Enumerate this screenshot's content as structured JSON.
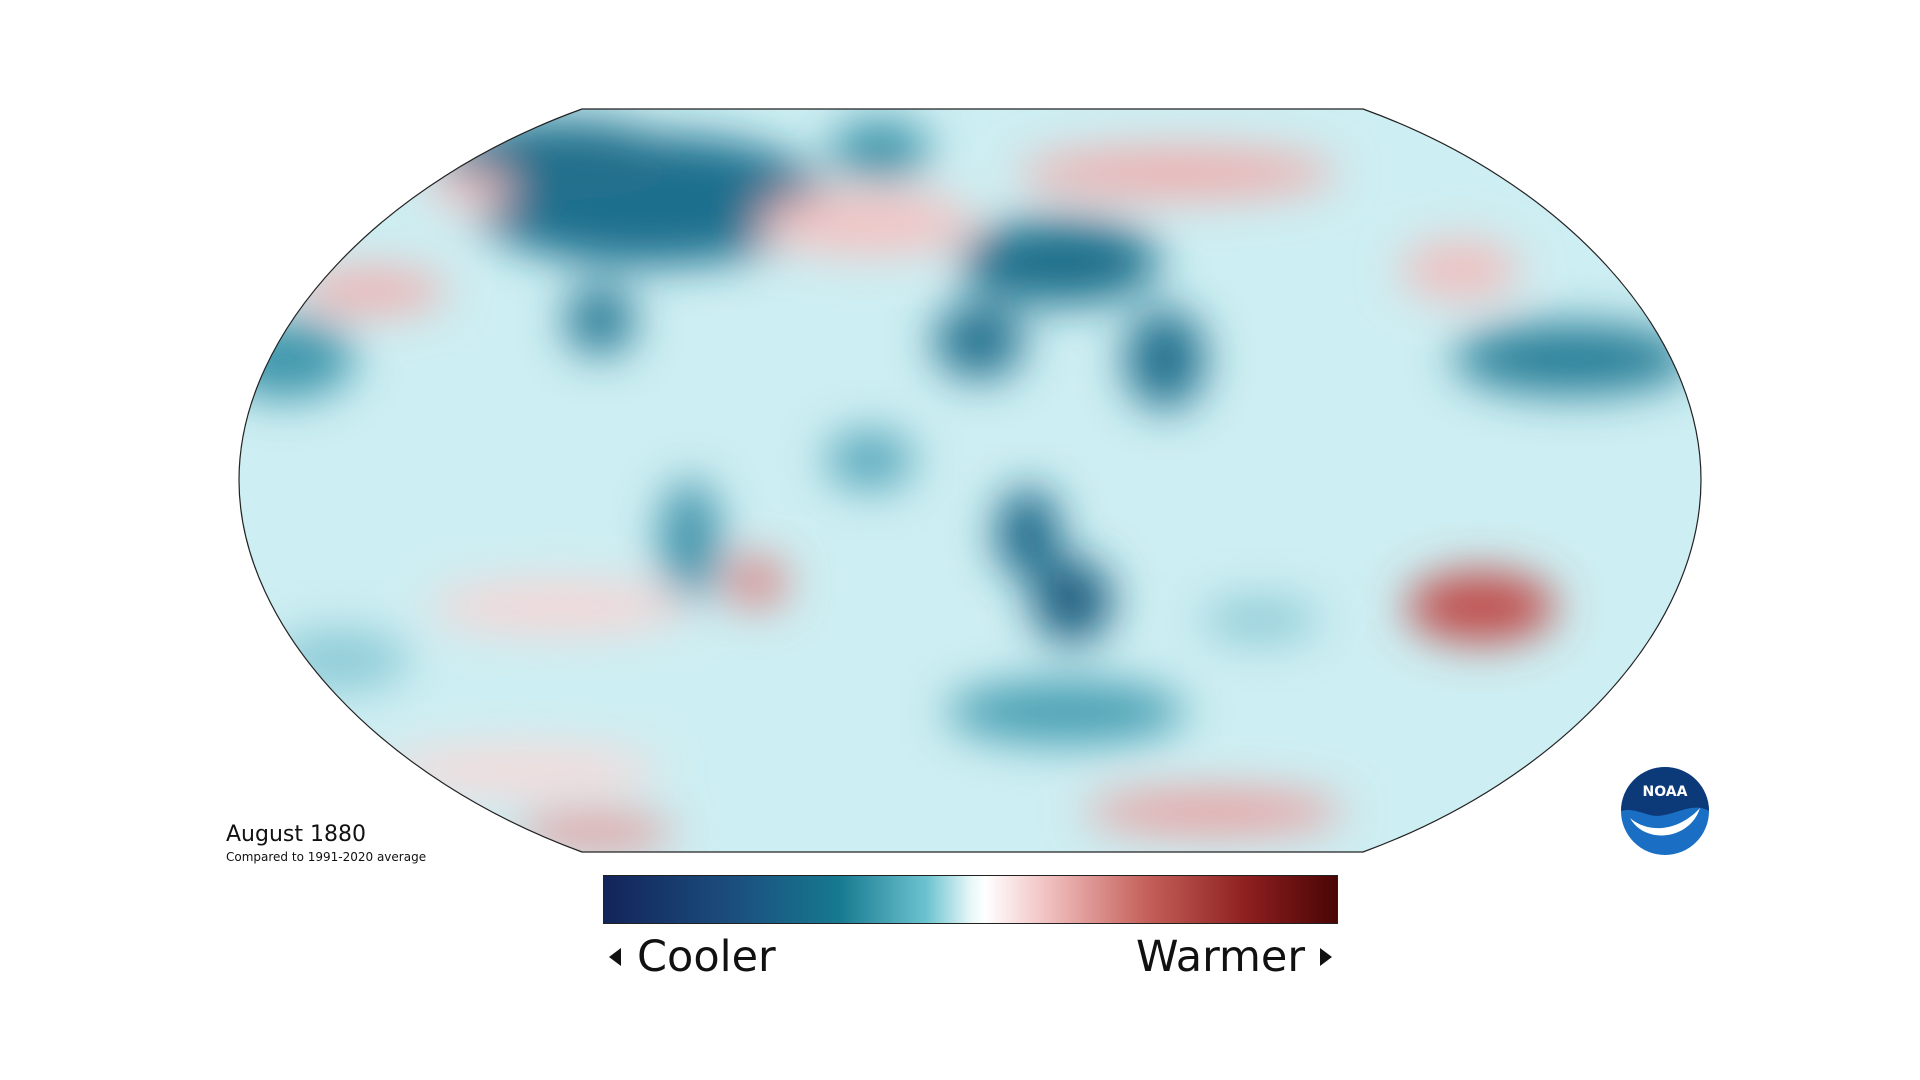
{
  "header": {
    "title": "August 1880",
    "subtitle": "Compared to 1991-2020 average"
  },
  "legend": {
    "low_label": "Cooler",
    "high_label": "Warmer"
  },
  "logo": {
    "text": "NOAA"
  }
}
